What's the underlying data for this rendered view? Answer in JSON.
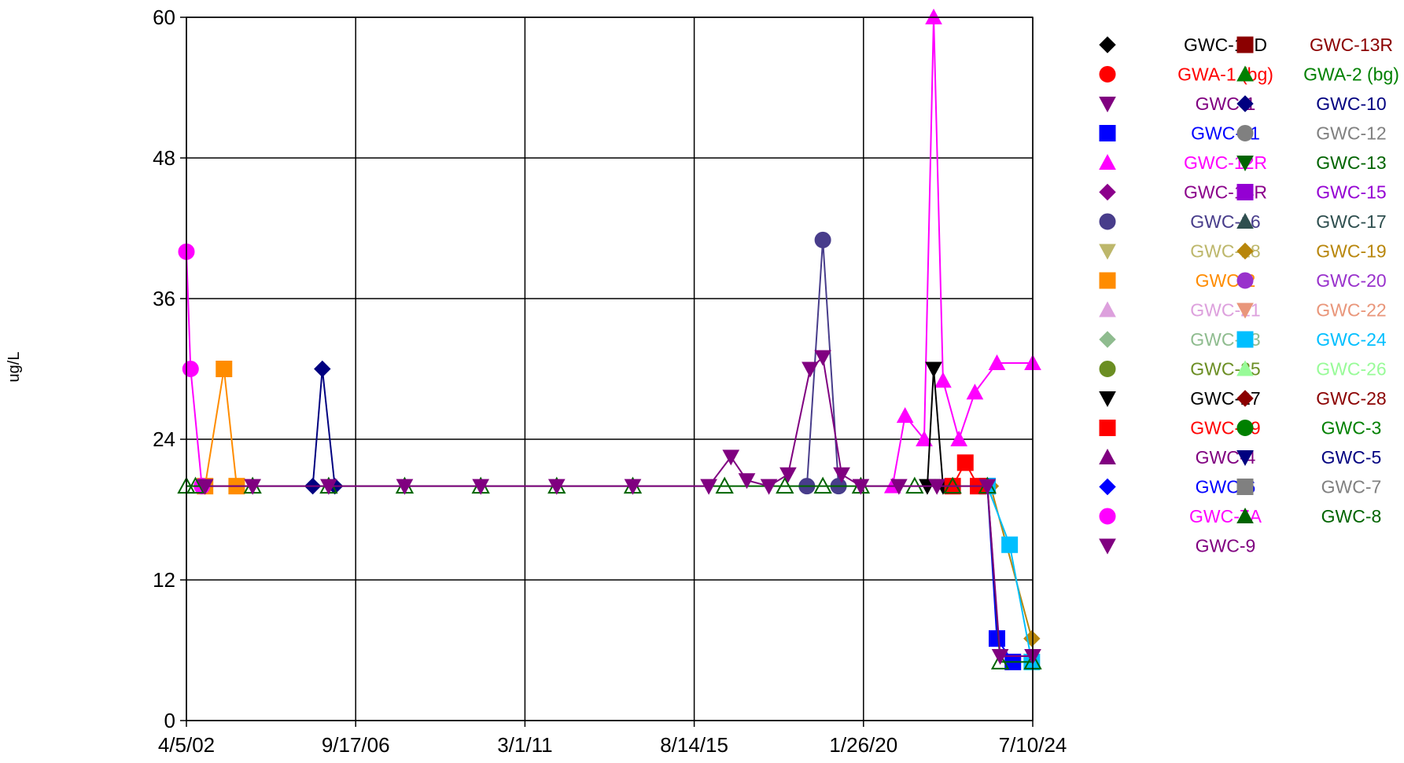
{
  "chart_data": {
    "type": "line",
    "ylabel": "ug/L",
    "xlabel": "",
    "ylim": [
      0,
      60
    ],
    "yticks": [
      "0",
      "12",
      "24",
      "36",
      "48",
      "60"
    ],
    "xlim": [
      "2002-04-05",
      "2024-07-10"
    ],
    "xticks": [
      "4/5/02",
      "9/17/06",
      "3/1/11",
      "8/14/15",
      "1/26/20",
      "7/10/24"
    ],
    "grid": true,
    "legend_position": "right",
    "series": [
      {
        "name": "GWC-10D",
        "color": "#000000",
        "marker": "diamond",
        "points": []
      },
      {
        "name": "GWC-13R",
        "color": "#8b0000",
        "marker": "square",
        "points": []
      },
      {
        "name": "GWA-1 (bg)",
        "color": "#ff0000",
        "marker": "circle",
        "points": []
      },
      {
        "name": "GWA-2 (bg)",
        "color": "#008000",
        "marker": "triangle-up",
        "points": []
      },
      {
        "name": "GWC-1",
        "color": "#800080",
        "marker": "triangle-down",
        "points": []
      },
      {
        "name": "GWC-10",
        "color": "#000080",
        "marker": "diamond",
        "points": [
          [
            "2005-08-01",
            20
          ],
          [
            "2005-11-01",
            30
          ],
          [
            "2006-03-01",
            20
          ]
        ]
      },
      {
        "name": "GWC-11",
        "color": "#0000ff",
        "marker": "square",
        "points": [
          [
            "2023-05-01",
            20
          ],
          [
            "2023-08-01",
            7
          ],
          [
            "2024-01-01",
            5
          ]
        ]
      },
      {
        "name": "GWC-12",
        "color": "#808080",
        "marker": "circle",
        "points": []
      },
      {
        "name": "GWC-12R",
        "color": "#ff00ff",
        "marker": "triangle-up",
        "points": [
          [
            "2020-11-01",
            20
          ],
          [
            "2021-03-01",
            26
          ],
          [
            "2021-09-01",
            24
          ],
          [
            "2021-12-01",
            60
          ],
          [
            "2022-03-01",
            29
          ],
          [
            "2022-08-01",
            24
          ],
          [
            "2023-01-01",
            28
          ],
          [
            "2023-08-01",
            30.5
          ],
          [
            "2024-07-10",
            30.5
          ]
        ]
      },
      {
        "name": "GWC-13",
        "color": "#006400",
        "marker": "triangle-down",
        "points": []
      },
      {
        "name": "GWC-14R",
        "color": "#8b008b",
        "marker": "diamond",
        "points": []
      },
      {
        "name": "GWC-15",
        "color": "#9400d3",
        "marker": "square",
        "points": []
      },
      {
        "name": "GWC-16",
        "color": "#483d8b",
        "marker": "circle",
        "points": [
          [
            "2018-08-01",
            20
          ],
          [
            "2019-01-01",
            41
          ],
          [
            "2019-06-01",
            20
          ]
        ]
      },
      {
        "name": "GWC-17",
        "color": "#2f4f4f",
        "marker": "triangle-up",
        "points": []
      },
      {
        "name": "GWC-18",
        "color": "#bdb76b",
        "marker": "triangle-down",
        "points": []
      },
      {
        "name": "GWC-19",
        "color": "#b8860b",
        "marker": "diamond",
        "points": [
          [
            "2023-06-01",
            20
          ],
          [
            "2024-07-01",
            7
          ]
        ]
      },
      {
        "name": "GWC-2",
        "color": "#ff8c00",
        "marker": "square",
        "points": [
          [
            "2002-10-01",
            20
          ],
          [
            "2003-04-01",
            30
          ],
          [
            "2003-08-01",
            20
          ]
        ]
      },
      {
        "name": "GWC-20",
        "color": "#9932cc",
        "marker": "circle",
        "points": []
      },
      {
        "name": "GWC-21",
        "color": "#dda0dd",
        "marker": "triangle-up",
        "points": []
      },
      {
        "name": "GWC-22",
        "color": "#e9967a",
        "marker": "triangle-down",
        "points": []
      },
      {
        "name": "GWC-23",
        "color": "#8fbc8f",
        "marker": "diamond",
        "points": []
      },
      {
        "name": "GWC-24",
        "color": "#00bfff",
        "marker": "square",
        "points": [
          [
            "2023-05-01",
            20
          ],
          [
            "2023-12-01",
            15
          ],
          [
            "2024-07-01",
            5
          ]
        ]
      },
      {
        "name": "GWC-25",
        "color": "#6b8e23",
        "marker": "circle",
        "points": []
      },
      {
        "name": "GWC-26",
        "color": "#98fb98",
        "marker": "triangle-up",
        "points": []
      },
      {
        "name": "GWC-27",
        "color": "#000000",
        "marker": "triangle-down",
        "points": [
          [
            "2021-10-01",
            20
          ],
          [
            "2021-12-01",
            30
          ],
          [
            "2022-03-01",
            20
          ]
        ]
      },
      {
        "name": "GWC-28",
        "color": "#8b0000",
        "marker": "diamond",
        "points": []
      },
      {
        "name": "GWC-29",
        "color": "#ff0000",
        "marker": "square",
        "points": [
          [
            "2022-06-01",
            20
          ],
          [
            "2022-10-01",
            22
          ],
          [
            "2023-02-01",
            20
          ]
        ]
      },
      {
        "name": "GWC-3",
        "color": "#008000",
        "marker": "circle",
        "points": []
      },
      {
        "name": "GWC-4",
        "color": "#800080",
        "marker": "triangle-up",
        "points": []
      },
      {
        "name": "GWC-5",
        "color": "#000080",
        "marker": "triangle-down",
        "points": []
      },
      {
        "name": "GWC-6",
        "color": "#0000ff",
        "marker": "diamond",
        "points": []
      },
      {
        "name": "GWC-7",
        "color": "#808080",
        "marker": "square",
        "points": []
      },
      {
        "name": "GWC-7A",
        "color": "#ff00ff",
        "marker": "circle",
        "points": [
          [
            "2002-04-05",
            40
          ],
          [
            "2002-05-15",
            30
          ],
          [
            "2002-09-01",
            20
          ]
        ]
      },
      {
        "name": "GWC-8",
        "color": "#006400",
        "marker": "triangle-up",
        "points": [
          [
            "2002-04-05",
            20
          ],
          [
            "2002-07-01",
            20
          ],
          [
            "2004-01-01",
            20
          ],
          [
            "2006-01-01",
            20
          ],
          [
            "2008-01-01",
            20
          ],
          [
            "2010-01-01",
            20
          ],
          [
            "2012-01-01",
            20
          ],
          [
            "2014-01-01",
            20
          ],
          [
            "2016-06-01",
            20
          ],
          [
            "2018-01-01",
            20
          ],
          [
            "2019-01-01",
            20
          ],
          [
            "2020-01-01",
            20
          ],
          [
            "2021-06-01",
            20
          ],
          [
            "2022-06-01",
            20
          ],
          [
            "2023-05-01",
            20
          ],
          [
            "2023-09-01",
            5
          ],
          [
            "2024-07-10",
            5
          ]
        ]
      },
      {
        "name": "GWC-9",
        "color": "#800080",
        "marker": "triangle-down",
        "points": [
          [
            "2002-10-01",
            20
          ],
          [
            "2004-01-01",
            20
          ],
          [
            "2006-01-01",
            20
          ],
          [
            "2008-01-01",
            20
          ],
          [
            "2010-01-01",
            20
          ],
          [
            "2012-01-01",
            20
          ],
          [
            "2014-01-01",
            20
          ],
          [
            "2016-01-01",
            20
          ],
          [
            "2016-08-01",
            22.5
          ],
          [
            "2017-01-01",
            20.5
          ],
          [
            "2017-08-01",
            20
          ],
          [
            "2018-02-01",
            21
          ],
          [
            "2018-09-01",
            30
          ],
          [
            "2019-01-01",
            31
          ],
          [
            "2019-07-01",
            21
          ],
          [
            "2020-01-01",
            20
          ],
          [
            "2021-01-01",
            20
          ],
          [
            "2022-01-01",
            20
          ],
          [
            "2023-05-01",
            20
          ],
          [
            "2023-09-01",
            5.5
          ],
          [
            "2024-07-10",
            5.5
          ]
        ]
      }
    ]
  }
}
